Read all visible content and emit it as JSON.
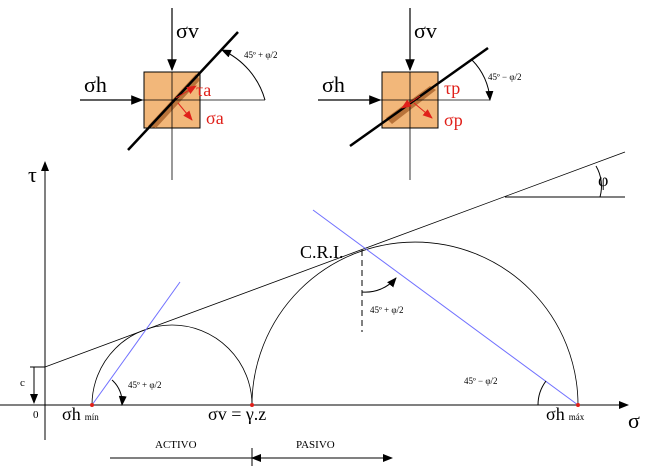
{
  "left_element": {
    "sigma_v": "σv",
    "sigma_h": "σh",
    "tau": "τa",
    "sigma": "σa",
    "angle": "45º + φ/2"
  },
  "right_element": {
    "sigma_v": "σv",
    "sigma_h": "σh",
    "tau": "τp",
    "sigma": "σp",
    "angle": "45º − φ/2"
  },
  "axes": {
    "tau": "τ",
    "sigma": "σ",
    "origin": "0",
    "cohesion": "c"
  },
  "envelope": {
    "phi": "φ"
  },
  "point": {
    "label": "C.R.I.",
    "angle": "45º + φ/2"
  },
  "left_circle": {
    "angle": "45º + φ/2"
  },
  "right_circle": {
    "angle": "45º − φ/2"
  },
  "stresses": {
    "sigma_h_min": {
      "symbol": "σh",
      "qualifier": "mín"
    },
    "sigma_v": "σv = γ.z",
    "sigma_h_max": {
      "symbol": "σh",
      "qualifier": "máx"
    }
  },
  "zones": {
    "active": "ACTIVO",
    "passive": "PASIVO"
  }
}
